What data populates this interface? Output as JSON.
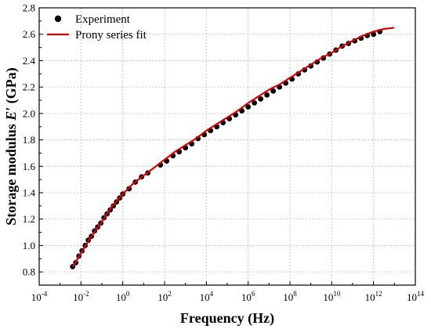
{
  "chart_data": {
    "type": "scatter",
    "title": "",
    "xlabel": "Frequency (Hz)",
    "ylabel_main": "Storage modulus ",
    "ylabel_symbol": "E′",
    "ylabel_unit": " (GPa)",
    "x_scale": "log10",
    "xlim_exponent": [
      -4,
      14
    ],
    "x_tick_exponents": [
      -4,
      -2,
      0,
      2,
      4,
      6,
      8,
      10,
      12,
      14
    ],
    "ylim": [
      0.7,
      2.8
    ],
    "y_ticks": [
      "0.8",
      "1.0",
      "1.2",
      "1.4",
      "1.6",
      "1.8",
      "2.0",
      "2.2",
      "2.4",
      "2.6",
      "2.8"
    ],
    "grid": true,
    "legend_position": "top-left",
    "series": [
      {
        "name": "Experiment",
        "kind": "points",
        "color": "#000000",
        "points": [
          [
            -2.4,
            0.84
          ],
          [
            -2.25,
            0.87
          ],
          [
            -2.1,
            0.92
          ],
          [
            -1.95,
            0.96
          ],
          [
            -1.8,
            1.0
          ],
          [
            -1.65,
            1.04
          ],
          [
            -1.5,
            1.07
          ],
          [
            -1.35,
            1.11
          ],
          [
            -1.2,
            1.14
          ],
          [
            -1.05,
            1.17
          ],
          [
            -0.9,
            1.21
          ],
          [
            -0.75,
            1.24
          ],
          [
            -0.6,
            1.27
          ],
          [
            -0.45,
            1.3
          ],
          [
            -0.3,
            1.33
          ],
          [
            -0.15,
            1.36
          ],
          [
            0.0,
            1.39
          ],
          [
            0.3,
            1.43
          ],
          [
            0.6,
            1.48
          ],
          [
            0.9,
            1.52
          ],
          [
            1.2,
            1.55
          ],
          [
            1.8,
            1.61
          ],
          [
            2.1,
            1.64
          ],
          [
            2.4,
            1.68
          ],
          [
            2.7,
            1.71
          ],
          [
            3.0,
            1.74
          ],
          [
            3.3,
            1.77
          ],
          [
            3.6,
            1.81
          ],
          [
            3.9,
            1.84
          ],
          [
            4.2,
            1.87
          ],
          [
            4.5,
            1.9
          ],
          [
            4.8,
            1.93
          ],
          [
            5.1,
            1.96
          ],
          [
            5.4,
            1.99
          ],
          [
            5.7,
            2.02
          ],
          [
            6.0,
            2.05
          ],
          [
            6.3,
            2.08
          ],
          [
            6.6,
            2.11
          ],
          [
            6.9,
            2.14
          ],
          [
            7.2,
            2.17
          ],
          [
            7.5,
            2.2
          ],
          [
            7.8,
            2.23
          ],
          [
            8.1,
            2.26
          ],
          [
            8.4,
            2.3
          ],
          [
            8.7,
            2.33
          ],
          [
            9.0,
            2.36
          ],
          [
            9.3,
            2.39
          ],
          [
            9.6,
            2.42
          ],
          [
            9.9,
            2.45
          ],
          [
            10.2,
            2.48
          ],
          [
            10.5,
            2.51
          ],
          [
            10.8,
            2.53
          ],
          [
            11.1,
            2.55
          ],
          [
            11.4,
            2.57
          ],
          [
            11.7,
            2.59
          ],
          [
            12.0,
            2.6
          ],
          [
            12.3,
            2.62
          ]
        ]
      },
      {
        "name": "Prony series fit",
        "kind": "line",
        "color": "#e00000",
        "points": [
          [
            -2.4,
            0.84
          ],
          [
            -2.0,
            0.94
          ],
          [
            -1.5,
            1.07
          ],
          [
            -1.0,
            1.18
          ],
          [
            -0.5,
            1.3
          ],
          [
            0.0,
            1.39
          ],
          [
            0.5,
            1.47
          ],
          [
            1.0,
            1.53
          ],
          [
            1.5,
            1.59
          ],
          [
            2.0,
            1.65
          ],
          [
            2.5,
            1.71
          ],
          [
            3.0,
            1.76
          ],
          [
            3.5,
            1.81
          ],
          [
            4.0,
            1.87
          ],
          [
            4.5,
            1.92
          ],
          [
            5.0,
            1.97
          ],
          [
            5.5,
            2.02
          ],
          [
            6.0,
            2.08
          ],
          [
            6.5,
            2.13
          ],
          [
            7.0,
            2.18
          ],
          [
            7.5,
            2.22
          ],
          [
            8.0,
            2.27
          ],
          [
            8.5,
            2.32
          ],
          [
            9.0,
            2.37
          ],
          [
            9.5,
            2.42
          ],
          [
            10.0,
            2.46
          ],
          [
            10.5,
            2.51
          ],
          [
            11.0,
            2.55
          ],
          [
            11.5,
            2.59
          ],
          [
            12.0,
            2.62
          ],
          [
            12.5,
            2.64
          ],
          [
            13.0,
            2.65
          ]
        ]
      }
    ]
  }
}
